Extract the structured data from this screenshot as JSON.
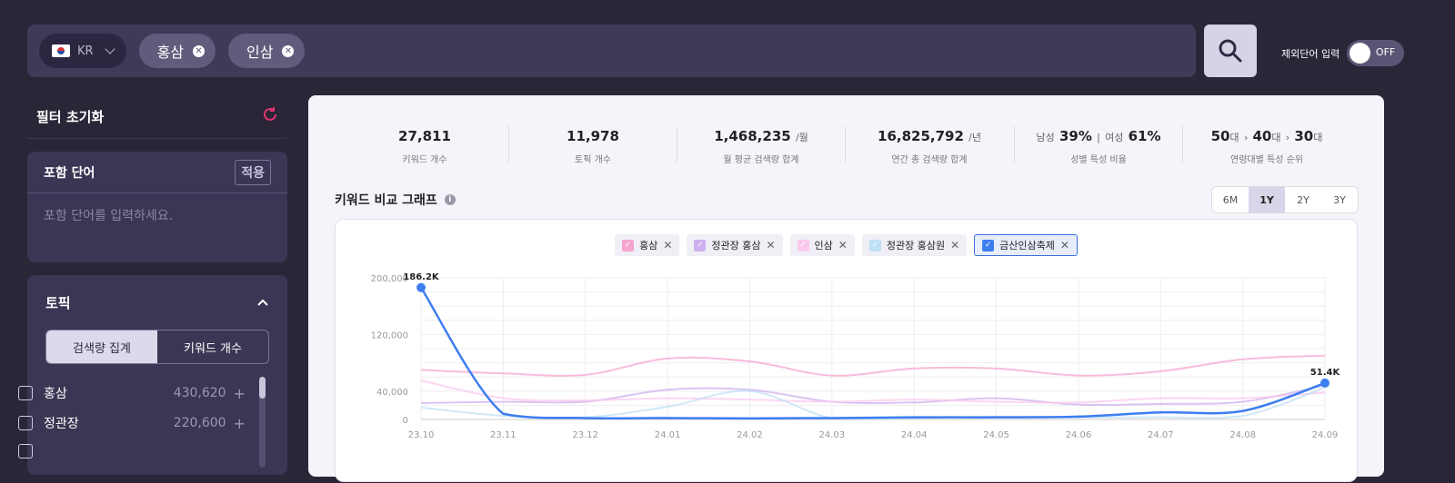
{
  "search": {
    "country": "KR",
    "chips": [
      "홍삼",
      "인삼"
    ]
  },
  "exclude": {
    "label": "제외단어 입력",
    "toggle": "OFF"
  },
  "sidebar": {
    "filter_title": "필터 초기화",
    "include": {
      "title": "포함 단어",
      "apply": "적용",
      "placeholder": "포함 단어를 입력하세요."
    },
    "topic": {
      "title": "토픽",
      "seg": [
        "검색량 집계",
        "키워드 개수"
      ],
      "rows": [
        {
          "label": "홍삼",
          "value": "430,620"
        },
        {
          "label": "정관장",
          "value": "220,600"
        }
      ]
    }
  },
  "stats": [
    {
      "value": "27,811",
      "unit": "",
      "label": "키워드 개수"
    },
    {
      "value": "11,978",
      "unit": "",
      "label": "토픽 개수"
    },
    {
      "value": "1,468,235",
      "unit": "/월",
      "label": "월 평균 검색량 합계"
    },
    {
      "value": "16,825,792",
      "unit": "/년",
      "label": "연간 총 검색량 합계"
    }
  ],
  "gender": {
    "male_label": "남성",
    "male": "39%",
    "female_label": "여성",
    "female": "61%",
    "label": "성별 특성 비율"
  },
  "age": {
    "a1": "50",
    "a2": "40",
    "a3": "30",
    "suffix": "대",
    "label": "연령대별 특성 순위"
  },
  "graph": {
    "title": "키워드 비교 그래프",
    "periods": [
      "6M",
      "1Y",
      "2Y",
      "3Y"
    ],
    "active_period": "1Y"
  },
  "chart_data": {
    "type": "line",
    "x": [
      "23.10",
      "23.11",
      "23.12",
      "24.01",
      "24.02",
      "24.03",
      "24.04",
      "24.05",
      "24.06",
      "24.07",
      "24.08",
      "24.09"
    ],
    "yticks": [
      "200,000",
      "120,000",
      "40,000",
      "0"
    ],
    "ylim": [
      0,
      200000
    ],
    "series": [
      {
        "name": "홍삼",
        "color": "#f4a6cf",
        "values": [
          70000,
          65000,
          63000,
          86000,
          82000,
          62000,
          72000,
          72000,
          62000,
          68000,
          85000,
          90000
        ]
      },
      {
        "name": "정관장 홍삼",
        "color": "#cdb0ee",
        "values": [
          23000,
          25000,
          25000,
          42000,
          42000,
          25000,
          24000,
          30000,
          21000,
          22000,
          25000,
          48000
        ]
      },
      {
        "name": "인삼",
        "color": "#fbc8ee",
        "values": [
          55000,
          30000,
          27000,
          30000,
          28000,
          25000,
          28000,
          25000,
          24000,
          30000,
          30000,
          38000
        ]
      },
      {
        "name": "정관장 홍삼원",
        "color": "#bfe0f6",
        "values": [
          17000,
          5000,
          3000,
          18000,
          40000,
          2000,
          2000,
          4000,
          3000,
          3000,
          5000,
          45000
        ]
      },
      {
        "name": "금산인삼축제",
        "color": "#3d7ef0",
        "values": [
          186200,
          8000,
          2000,
          2000,
          1500,
          2000,
          3000,
          3000,
          4000,
          10000,
          12000,
          51400
        ]
      }
    ],
    "labels": [
      {
        "series": 4,
        "index": 0,
        "text": "186.2K"
      },
      {
        "series": 4,
        "index": 11,
        "text": "51.4K"
      }
    ]
  }
}
